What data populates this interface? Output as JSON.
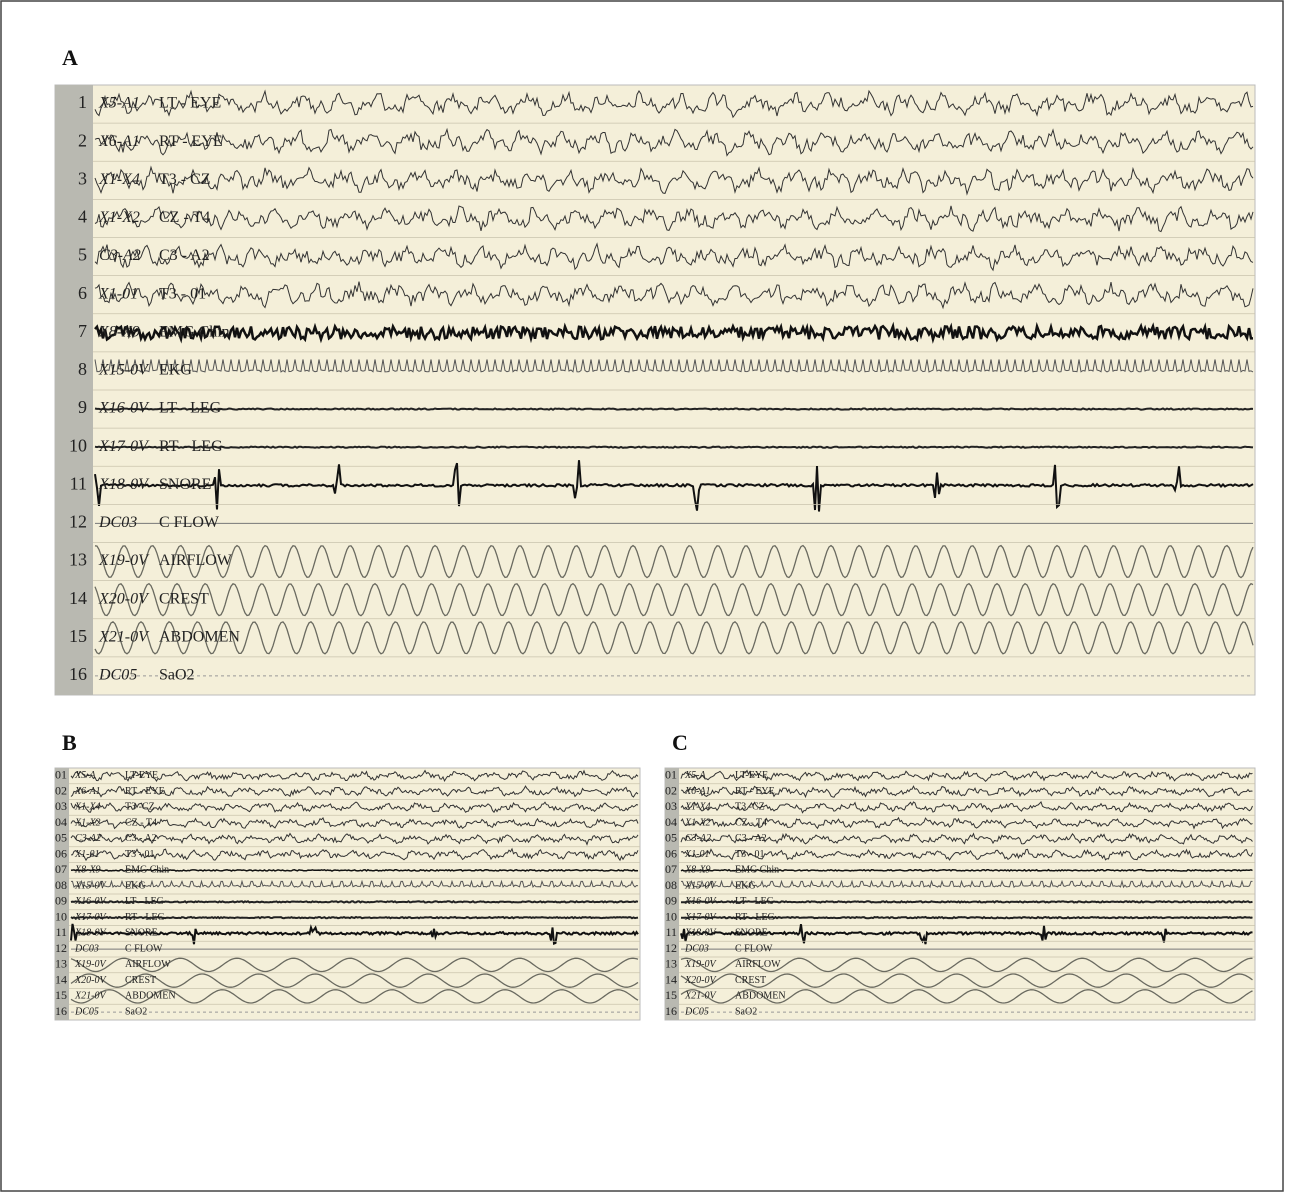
{
  "panels": [
    {
      "label": "A",
      "rows": [
        {
          "number": "1",
          "code": "X5-A1",
          "name": "LT - EYE"
        },
        {
          "number": "2",
          "code": "X6-A1",
          "name": "RT - EYE"
        },
        {
          "number": "3",
          "code": "X1-X4",
          "name": "T3 - CZ"
        },
        {
          "number": "4",
          "code": "X1-X2",
          "name": "CZ - T4"
        },
        {
          "number": "5",
          "code": "C3-A2",
          "name": "C3 - A2"
        },
        {
          "number": "6",
          "code": "X1-01",
          "name": "T3 - 01"
        },
        {
          "number": "7",
          "code": "X8-X9",
          "name": "EMG Chin"
        },
        {
          "number": "8",
          "code": "X15-0V",
          "name": "EKG"
        },
        {
          "number": "9",
          "code": "X16-0V",
          "name": "LT - LEG"
        },
        {
          "number": "10",
          "code": "X17-0V",
          "name": "RT - LEG"
        },
        {
          "number": "11",
          "code": "X18-0V",
          "name": "SNORE"
        },
        {
          "number": "12",
          "code": "DC03",
          "name": "C FLOW"
        },
        {
          "number": "13",
          "code": "X19-0V",
          "name": "AIRFLOW"
        },
        {
          "number": "14",
          "code": "X20-0V",
          "name": "CREST"
        },
        {
          "number": "15",
          "code": "X21-0V",
          "name": "ABDOMEN"
        },
        {
          "number": "16",
          "code": "DC05",
          "name": "SaO2"
        }
      ]
    },
    {
      "label": "B",
      "rows": [
        {
          "number": "01",
          "code": "X5-A",
          "name": "LT-EYE"
        },
        {
          "number": "02",
          "code": "X6-A1",
          "name": "RT - EYE"
        },
        {
          "number": "03",
          "code": "X1-X4",
          "name": "T3 -CZ"
        },
        {
          "number": "04",
          "code": "X1-X2",
          "name": "CZ - T4"
        },
        {
          "number": "05",
          "code": "C3-A2",
          "name": "C3 - A2"
        },
        {
          "number": "06",
          "code": "X1-01",
          "name": "T3 - 01"
        },
        {
          "number": "07",
          "code": "X8-X9",
          "name": "EMG Chin"
        },
        {
          "number": "08",
          "code": "X15-0V",
          "name": "EKG"
        },
        {
          "number": "09",
          "code": "X16-0V",
          "name": "LT - LEG"
        },
        {
          "number": "10",
          "code": "X17-0V",
          "name": "RT - LEG"
        },
        {
          "number": "11",
          "code": "X18-0V",
          "name": "SNORE"
        },
        {
          "number": "12",
          "code": "DC03",
          "name": "C FLOW"
        },
        {
          "number": "13",
          "code": "X19-0V",
          "name": "AIRFLOW"
        },
        {
          "number": "14",
          "code": "X20-0V",
          "name": "CREST"
        },
        {
          "number": "15",
          "code": "X21-0V",
          "name": "ABDOMEN"
        },
        {
          "number": "16",
          "code": "DC05",
          "name": "SaO2"
        }
      ]
    },
    {
      "label": "C",
      "rows": [
        {
          "number": "01",
          "code": "X5-A",
          "name": "LT-EYE"
        },
        {
          "number": "02",
          "code": "X6-A1",
          "name": "RT - EYE"
        },
        {
          "number": "03",
          "code": "X1-X4",
          "name": "T3 -CZ"
        },
        {
          "number": "04",
          "code": "X1-X2",
          "name": "CZ - T4"
        },
        {
          "number": "05",
          "code": "C3-A2",
          "name": "C3 - A2"
        },
        {
          "number": "06",
          "code": "X1-01",
          "name": "T3 - 01"
        },
        {
          "number": "07",
          "code": "X8-X9",
          "name": "EMG Chin"
        },
        {
          "number": "08",
          "code": "X15-0V",
          "name": "EKG"
        },
        {
          "number": "09",
          "code": "X16-0V",
          "name": "LT - LEG"
        },
        {
          "number": "10",
          "code": "X17-0V",
          "name": "RT - LEG"
        },
        {
          "number": "11",
          "code": "X18-0V",
          "name": "SNORE"
        },
        {
          "number": "12",
          "code": "DC03",
          "name": "C FLOW"
        },
        {
          "number": "13",
          "code": "X19-0V",
          "name": "AIRFLOW"
        },
        {
          "number": "14",
          "code": "X20-0V",
          "name": "CREST"
        },
        {
          "number": "15",
          "code": "X21-0V",
          "name": "ABDOMEN"
        },
        {
          "number": "16",
          "code": "DC05",
          "name": "SaO2"
        }
      ]
    }
  ]
}
